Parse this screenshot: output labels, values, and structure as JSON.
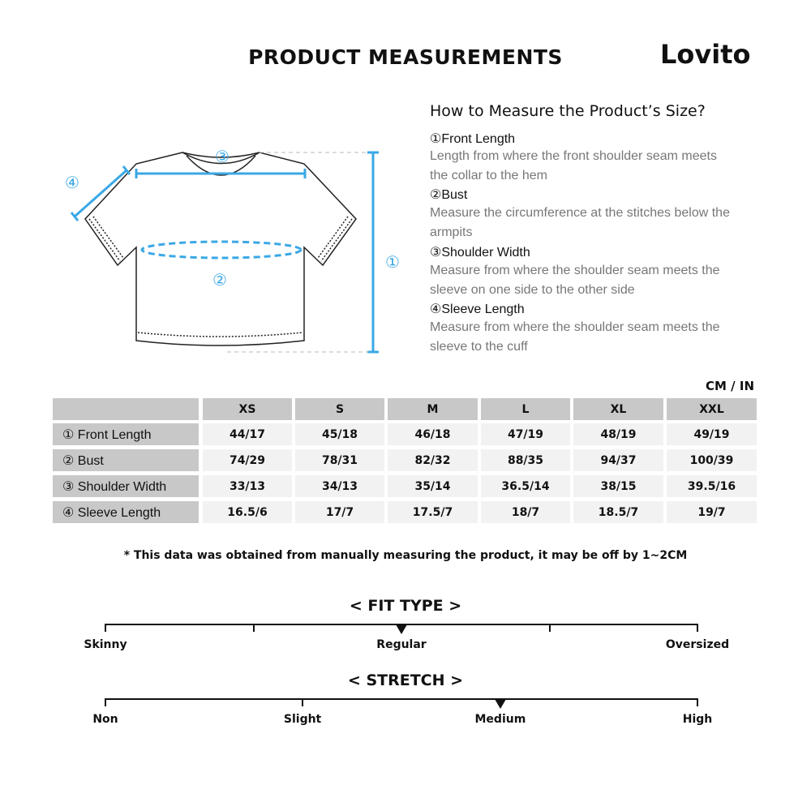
{
  "header": {
    "title": "PRODUCT MEASUREMENTS",
    "logo": "Lovito"
  },
  "guide": {
    "heading": "How to Measure the Product’s Size?",
    "items": [
      {
        "title": "①Front Length",
        "desc": "Length from where the front shoulder seam meets the collar to the hem"
      },
      {
        "title": "②Bust",
        "desc": "Measure the circumference at the stitches below the armpits"
      },
      {
        "title": "③Shoulder Width",
        "desc": "Measure from where the shoulder seam meets the sleeve on one side to the other side"
      },
      {
        "title": "④Sleeve Length",
        "desc": "Measure from where the shoulder seam meets the sleeve to the cuff"
      }
    ],
    "diagram_markers": [
      "①",
      "②",
      "③",
      "④"
    ],
    "accent_color": "#3aa8e6"
  },
  "table": {
    "unit": "CM / IN",
    "sizes": [
      "XS",
      "S",
      "M",
      "L",
      "XL",
      "XXL"
    ],
    "rows": [
      {
        "label": "① Front Length",
        "values": [
          "44/17",
          "45/18",
          "46/18",
          "47/19",
          "48/19",
          "49/19"
        ]
      },
      {
        "label": "② Bust",
        "values": [
          "74/29",
          "78/31",
          "82/32",
          "88/35",
          "94/37",
          "100/39"
        ]
      },
      {
        "label": "③ Shoulder Width",
        "values": [
          "33/13",
          "34/13",
          "35/14",
          "36.5/14",
          "38/15",
          "39.5/16"
        ]
      },
      {
        "label": "④ Sleeve Length",
        "values": [
          "16.5/6",
          "17/7",
          "17.5/7",
          "18/7",
          "18.5/7",
          "19/7"
        ]
      }
    ]
  },
  "note": "* This data was obtained from manually measuring the product, it may be off by 1~2CM",
  "fit": {
    "title": "< FIT TYPE >",
    "labels": [
      "Skinny",
      "Regular",
      "Oversized"
    ],
    "selected": "Regular",
    "level": 0.5
  },
  "stretch": {
    "title": "< STRETCH >",
    "labels": [
      "Non",
      "Slight",
      "Medium",
      "High"
    ],
    "selected": "Medium",
    "level": 0.667
  }
}
